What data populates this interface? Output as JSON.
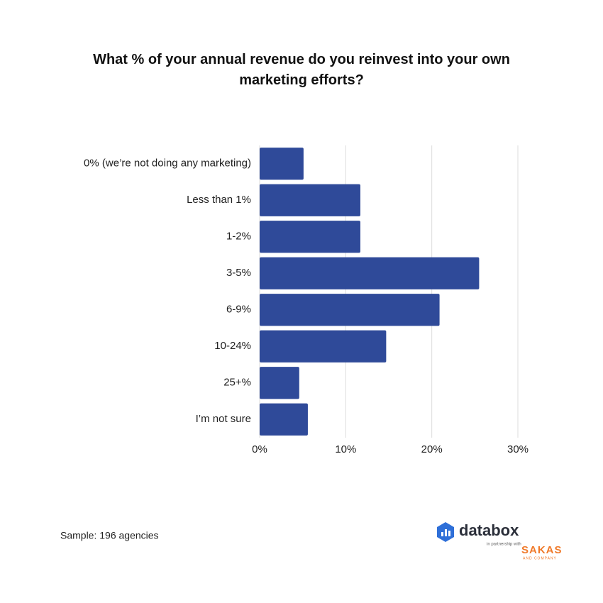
{
  "chart_data": {
    "type": "bar",
    "orientation": "horizontal",
    "title": "What % of your annual revenue do you reinvest into your own marketing efforts?",
    "categories": [
      "0% (we’re not doing any marketing)",
      "Less than 1%",
      "1-2%",
      "3-5%",
      "6-9%",
      "10-24%",
      "25+%",
      "I’m not sure"
    ],
    "values": [
      5.1,
      11.7,
      11.7,
      25.5,
      20.9,
      14.7,
      4.6,
      5.6
    ],
    "color": "#2f4a99",
    "xlim": [
      0,
      30
    ],
    "xticks": [
      {
        "value": 0,
        "label": "0%"
      },
      {
        "value": 10,
        "label": "10%"
      },
      {
        "value": 20,
        "label": "20%"
      },
      {
        "value": 30,
        "label": "30%"
      }
    ],
    "grid": true
  },
  "footer": {
    "note": "Sample: 196 agencies",
    "brand": "databox",
    "partner_text": "in partnership with",
    "partner": "SAKAS",
    "partner_sub": "AND COMPANY"
  }
}
